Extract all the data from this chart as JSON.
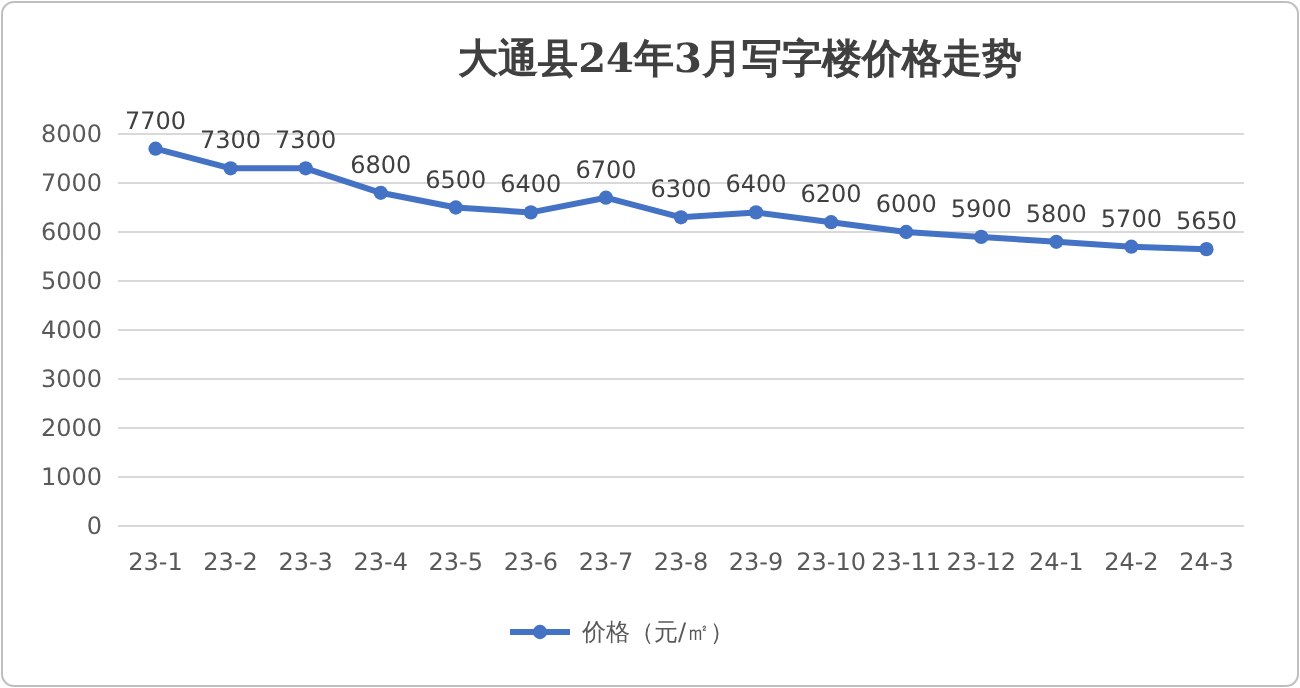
{
  "chart_data": {
    "type": "line",
    "title": "大通县24年3月写字楼价格走势",
    "categories": [
      "23-1",
      "23-2",
      "23-3",
      "23-4",
      "23-5",
      "23-6",
      "23-7",
      "23-8",
      "23-9",
      "23-10",
      "23-11",
      "23-12",
      "24-1",
      "24-2",
      "24-3"
    ],
    "series": [
      {
        "name": "价格（元/㎡）",
        "color": "#4472c4",
        "values": [
          7700,
          7300,
          7300,
          6800,
          6500,
          6400,
          6700,
          6300,
          6400,
          6200,
          6000,
          5900,
          5800,
          5700,
          5650
        ]
      }
    ],
    "ylim": [
      0,
      8000
    ],
    "yticks": [
      0,
      1000,
      2000,
      3000,
      4000,
      5000,
      6000,
      7000,
      8000
    ],
    "grid": "y",
    "legend": "bottom",
    "marker": "circle",
    "line_style": "solid",
    "data_labels": true
  }
}
